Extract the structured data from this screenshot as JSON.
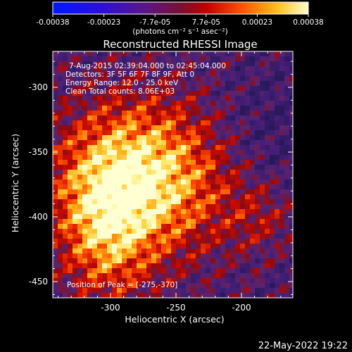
{
  "colorbar": {
    "ticks": [
      "-0.00038",
      "-0.00023",
      "-7.7e-05",
      "7.7e-05",
      "0.00023",
      "0.00038"
    ],
    "units": "(photons cm⁻² s⁻¹ asec⁻²)",
    "colors": [
      "#0018ff",
      "#4a10a8",
      "#3a2a68",
      "#c00000",
      "#ff5a00",
      "#ffd23a",
      "#ffffd0"
    ]
  },
  "image": {
    "title": "Reconstructed RHESSI Image",
    "annotations": {
      "time_range": "7-Aug-2015 02:39:04.000 to 02:45:04.000",
      "detectors": "Detectors: 3F 5F 6F 7F 8F 9F, Att 0",
      "energy": "Energy Range: 12.0 - 25.0 keV",
      "clean": "Clean    Total counts: 8.06E+03",
      "peak": "Position of Peak = [-275,-370]"
    },
    "xlabel": "Heliocentric X (arcsec)",
    "ylabel": "Heliocentric Y (arcsec)",
    "xticks": [
      "-300",
      "-250",
      "-200"
    ],
    "yticks": [
      "-300",
      "-350",
      "-400",
      "-450"
    ],
    "footer_date": "22-May-2022 19:22"
  }
}
